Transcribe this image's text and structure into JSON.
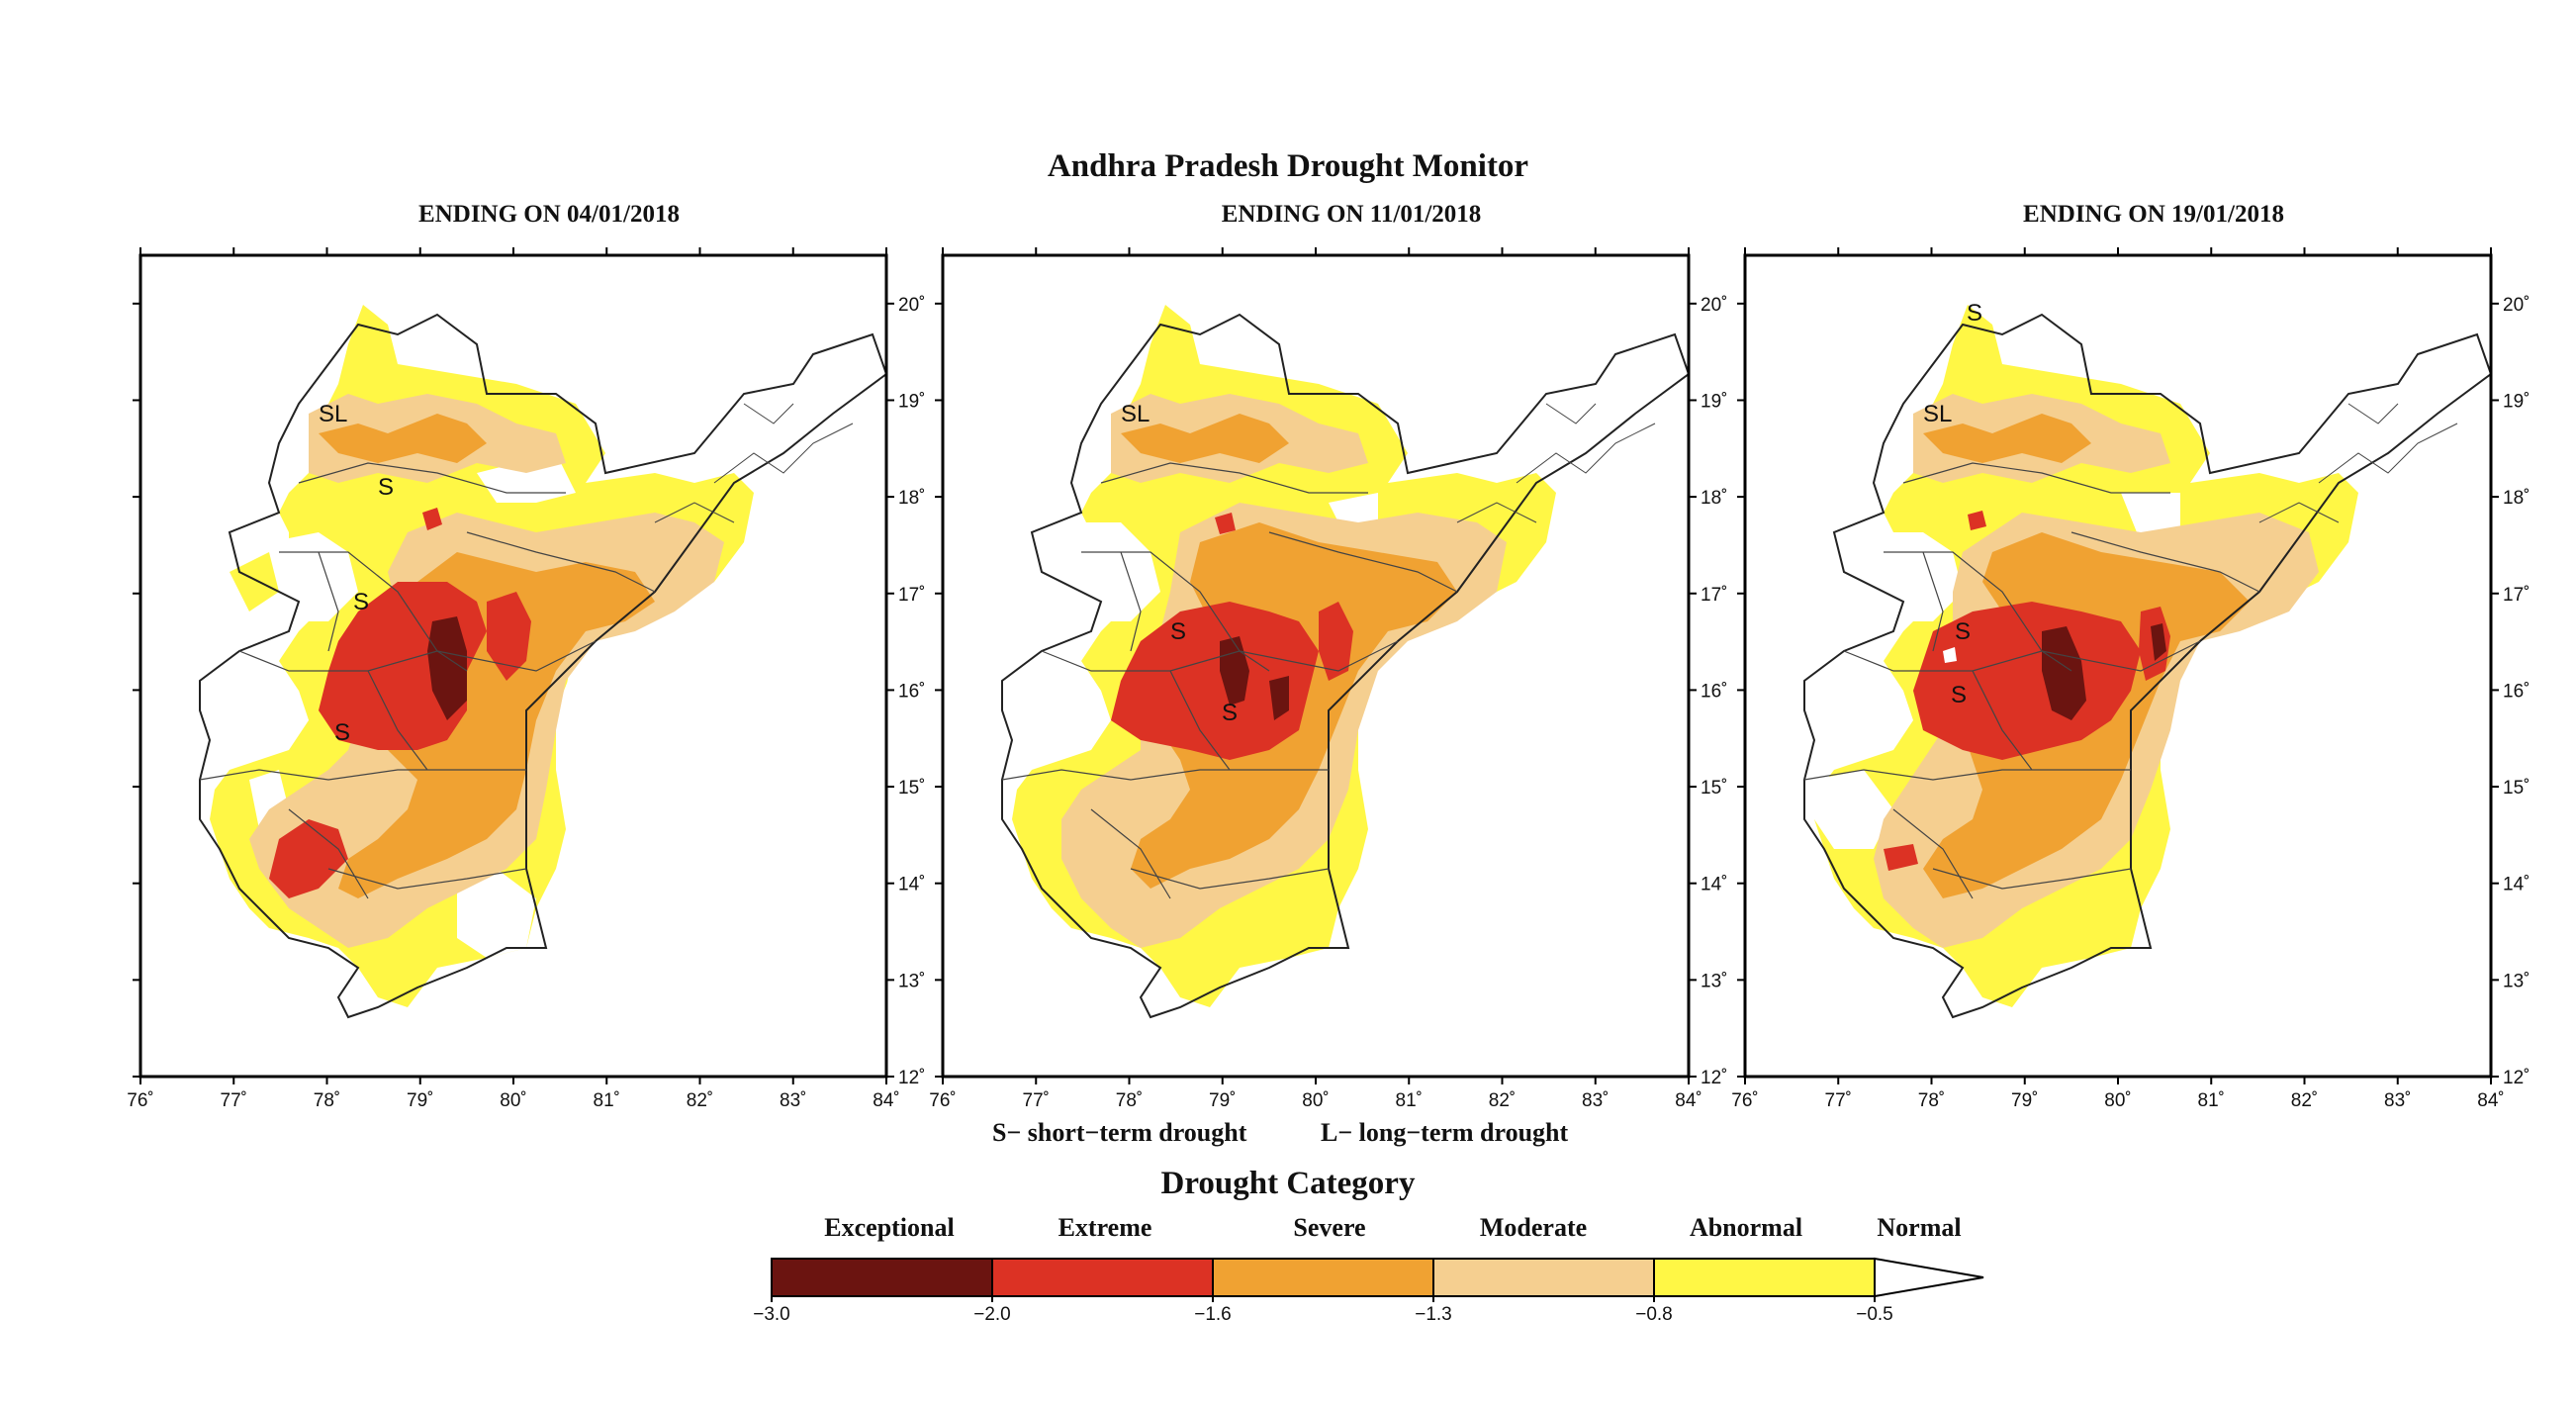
{
  "title": "Andhra Pradesh Drought Monitor",
  "panels": [
    {
      "title": "ENDING ON 04/01/2018",
      "labels": [
        "SL",
        "S",
        "S",
        "S"
      ]
    },
    {
      "title": "ENDING ON 11/01/2018",
      "labels": [
        "SL",
        "S",
        "S"
      ]
    },
    {
      "title": "ENDING ON 19/01/2018",
      "labels": [
        "S",
        "SL",
        "S",
        "S"
      ]
    }
  ],
  "axes": {
    "longitude_ticks": [
      "76˚",
      "77˚",
      "78˚",
      "79˚",
      "80˚",
      "81˚",
      "82˚",
      "83˚",
      "84˚"
    ],
    "latitude_ticks": [
      "20˚",
      "19˚",
      "18˚",
      "17˚",
      "16˚",
      "15˚",
      "14˚",
      "13˚",
      "12˚"
    ],
    "lon_range": [
      76,
      84
    ],
    "lat_range": [
      12,
      20.5
    ]
  },
  "notes": {
    "short_term": "S− short−term drought",
    "long_term": "L− long−term drought"
  },
  "legend": {
    "title": "Drought Category",
    "categories": [
      {
        "name": "Exceptional",
        "color": "#6b1410"
      },
      {
        "name": "Extreme",
        "color": "#dc3224"
      },
      {
        "name": "Severe",
        "color": "#f0a232"
      },
      {
        "name": "Moderate",
        "color": "#f5cf90"
      },
      {
        "name": "Abnormal",
        "color": "#fff745"
      },
      {
        "name": "Normal",
        "color": "#ffffff"
      }
    ],
    "ticks": [
      "−3.0",
      "−2.0",
      "−1.6",
      "−1.3",
      "−0.8",
      "−0.5"
    ]
  }
}
